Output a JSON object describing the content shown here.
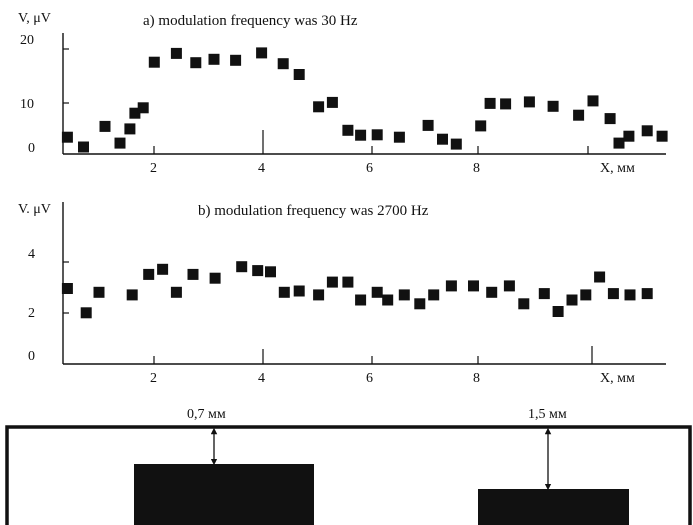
{
  "chart_data": [
    {
      "type": "scatter",
      "title": "a) modulation frequency was 30 Hz",
      "ylabel": "V, μV",
      "xlabel": "X, мм",
      "xlim": [
        0,
        10.9
      ],
      "ylim": [
        0,
        20
      ],
      "xticks": [
        "2",
        "4",
        "6",
        "8"
      ],
      "yticks": [
        "0",
        "10",
        "20"
      ],
      "grid": false,
      "series": [
        {
          "x": [
            0.08,
            0.37,
            0.76,
            1.03,
            1.21,
            1.3,
            1.45,
            1.65,
            2.05,
            2.4,
            2.73,
            3.12,
            3.59,
            3.98,
            4.27,
            4.62,
            4.87,
            5.15,
            5.38,
            5.68,
            6.08,
            6.6,
            6.86,
            7.11,
            7.55,
            7.72,
            8.0,
            8.43,
            8.86,
            9.32,
            9.58,
            9.89,
            10.05,
            10.23,
            10.56,
            10.83
          ],
          "y": [
            2.0,
            0.0,
            4.2,
            0.8,
            3.7,
            6.9,
            8.0,
            17.3,
            19.1,
            17.2,
            17.9,
            17.7,
            19.2,
            17.0,
            14.8,
            8.2,
            9.1,
            3.4,
            2.4,
            2.5,
            2.0,
            4.4,
            1.6,
            0.6,
            4.3,
            8.9,
            8.8,
            9.2,
            8.3,
            6.5,
            9.4,
            5.8,
            0.8,
            2.2,
            3.3,
            2.2
          ]
        }
      ]
    },
    {
      "type": "scatter",
      "title": "b) modulation frequency was 2700 Hz",
      "ylabel": "V. μV",
      "xlabel": "X, мм",
      "xlim": [
        0,
        10.9
      ],
      "ylim": [
        0,
        5
      ],
      "xticks": [
        "2",
        "4",
        "6",
        "8"
      ],
      "yticks": [
        "0",
        "2",
        "4"
      ],
      "grid": false,
      "series": [
        {
          "x": [
            0.08,
            0.42,
            0.65,
            1.25,
            1.55,
            1.8,
            2.05,
            2.35,
            2.75,
            3.23,
            3.52,
            3.75,
            4.0,
            4.27,
            4.62,
            4.87,
            5.15,
            5.38,
            5.68,
            5.87,
            6.17,
            6.45,
            6.7,
            7.02,
            7.42,
            7.75,
            8.07,
            8.33,
            8.7,
            8.95,
            9.2,
            9.45,
            9.7,
            9.95,
            10.25,
            10.56
          ],
          "y": [
            2.95,
            2.0,
            2.8,
            2.7,
            3.5,
            3.7,
            2.8,
            3.5,
            3.35,
            3.8,
            3.65,
            3.6,
            2.8,
            2.85,
            2.7,
            3.2,
            3.2,
            2.5,
            2.8,
            2.5,
            2.7,
            2.35,
            2.7,
            3.05,
            3.05,
            2.8,
            3.05,
            2.35,
            2.75,
            2.05,
            2.5,
            2.7,
            3.4,
            2.75,
            2.7,
            2.75
          ]
        }
      ]
    }
  ],
  "diagram": {
    "dim_left": "0,7 мм",
    "dim_right": "1,5 мм"
  }
}
